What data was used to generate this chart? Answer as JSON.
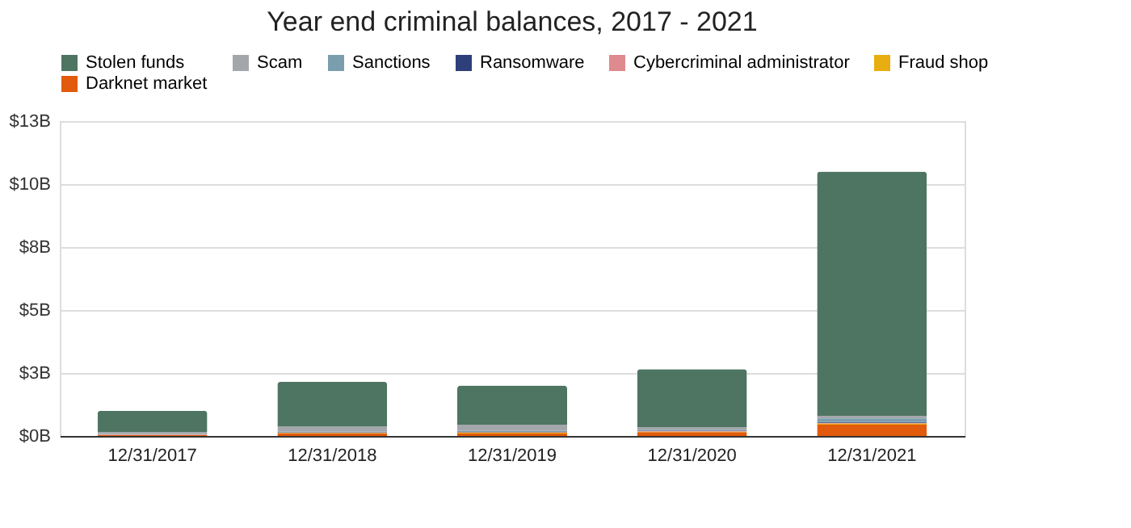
{
  "chart_data": {
    "type": "bar",
    "stacked": true,
    "title": "Year end criminal balances, 2017 - 2021",
    "categories": [
      "12/31/2017",
      "12/31/2018",
      "12/31/2019",
      "12/31/2020",
      "12/31/2021"
    ],
    "series": [
      {
        "name": "Darknet market",
        "color": "#e25a0b",
        "values": [
          0.04,
          0.1,
          0.1,
          0.15,
          0.45
        ]
      },
      {
        "name": "Fraud shop",
        "color": "#e8ad10",
        "values": [
          0.0,
          0.02,
          0.03,
          0.03,
          0.05
        ]
      },
      {
        "name": "Cybercriminal administrator",
        "color": "#de8a8f",
        "values": [
          0.02,
          0.02,
          0.02,
          0.02,
          0.02
        ]
      },
      {
        "name": "Ransomware",
        "color": "#2e3f7a",
        "values": [
          0.0,
          0.01,
          0.01,
          0.02,
          0.03
        ]
      },
      {
        "name": "Sanctions",
        "color": "#7a9eae",
        "values": [
          0.02,
          0.03,
          0.04,
          0.03,
          0.15
        ]
      },
      {
        "name": "Scam",
        "color": "#a3a7ab",
        "values": [
          0.08,
          0.2,
          0.25,
          0.1,
          0.1
        ]
      },
      {
        "name": "Stolen funds",
        "color": "#4e7462",
        "values": [
          0.84,
          1.77,
          1.55,
          2.3,
          9.7
        ]
      }
    ],
    "ylim": [
      0,
      12.5
    ],
    "yticks": [
      {
        "value": 0,
        "label": "$0B"
      },
      {
        "value": 2.5,
        "label": "$3B"
      },
      {
        "value": 5,
        "label": "$5B"
      },
      {
        "value": 7.5,
        "label": "$8B"
      },
      {
        "value": 10,
        "label": "$10B"
      },
      {
        "value": 12.5,
        "label": "$13B"
      }
    ],
    "grid": "y",
    "legend": "top"
  }
}
